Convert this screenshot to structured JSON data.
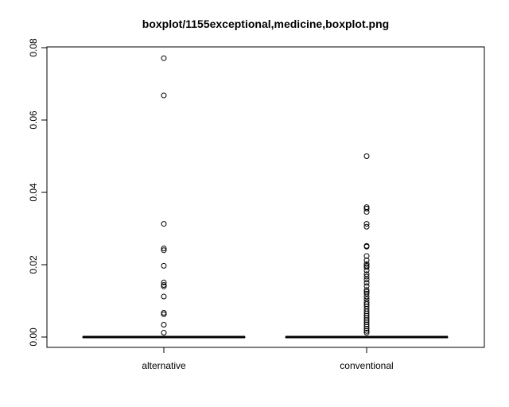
{
  "chart_data": {
    "type": "boxplot",
    "title": "boxplot/1155exceptional,medicine,boxplot.png",
    "xlabel": "",
    "ylabel": "",
    "ylim": [
      -0.003,
      0.08
    ],
    "yticks": [
      0.0,
      0.02,
      0.04,
      0.06,
      0.08
    ],
    "ytick_labels": [
      "0.00",
      "0.02",
      "0.04",
      "0.06",
      "0.08"
    ],
    "categories": [
      "alternative",
      "conventional"
    ],
    "boxes": [
      {
        "name": "alternative",
        "min": 0.0,
        "q1": 0.0,
        "median": 0.0,
        "q3": 0.0,
        "max": 0.0,
        "outliers": [
          0.0771,
          0.0668,
          0.0313,
          0.0245,
          0.024,
          0.0197,
          0.0151,
          0.0144,
          0.014,
          0.0112,
          0.0067,
          0.0063,
          0.0034,
          0.0012
        ]
      },
      {
        "name": "conventional",
        "min": 0.0,
        "q1": 0.0,
        "median": 0.0,
        "q3": 0.0,
        "max": 0.0,
        "outliers": [
          0.05,
          0.0359,
          0.0355,
          0.0346,
          0.0313,
          0.0305,
          0.0252,
          0.025,
          0.0224,
          0.0212,
          0.0202,
          0.0197,
          0.0193,
          0.0184,
          0.0174,
          0.0167,
          0.0159,
          0.015,
          0.0141,
          0.013,
          0.0125,
          0.012,
          0.0112,
          0.0105,
          0.0097,
          0.0091,
          0.0085,
          0.0078,
          0.0071,
          0.0065,
          0.0059,
          0.0053,
          0.0047,
          0.0041,
          0.0035,
          0.0029,
          0.0023,
          0.0017,
          0.0012
        ]
      }
    ]
  }
}
